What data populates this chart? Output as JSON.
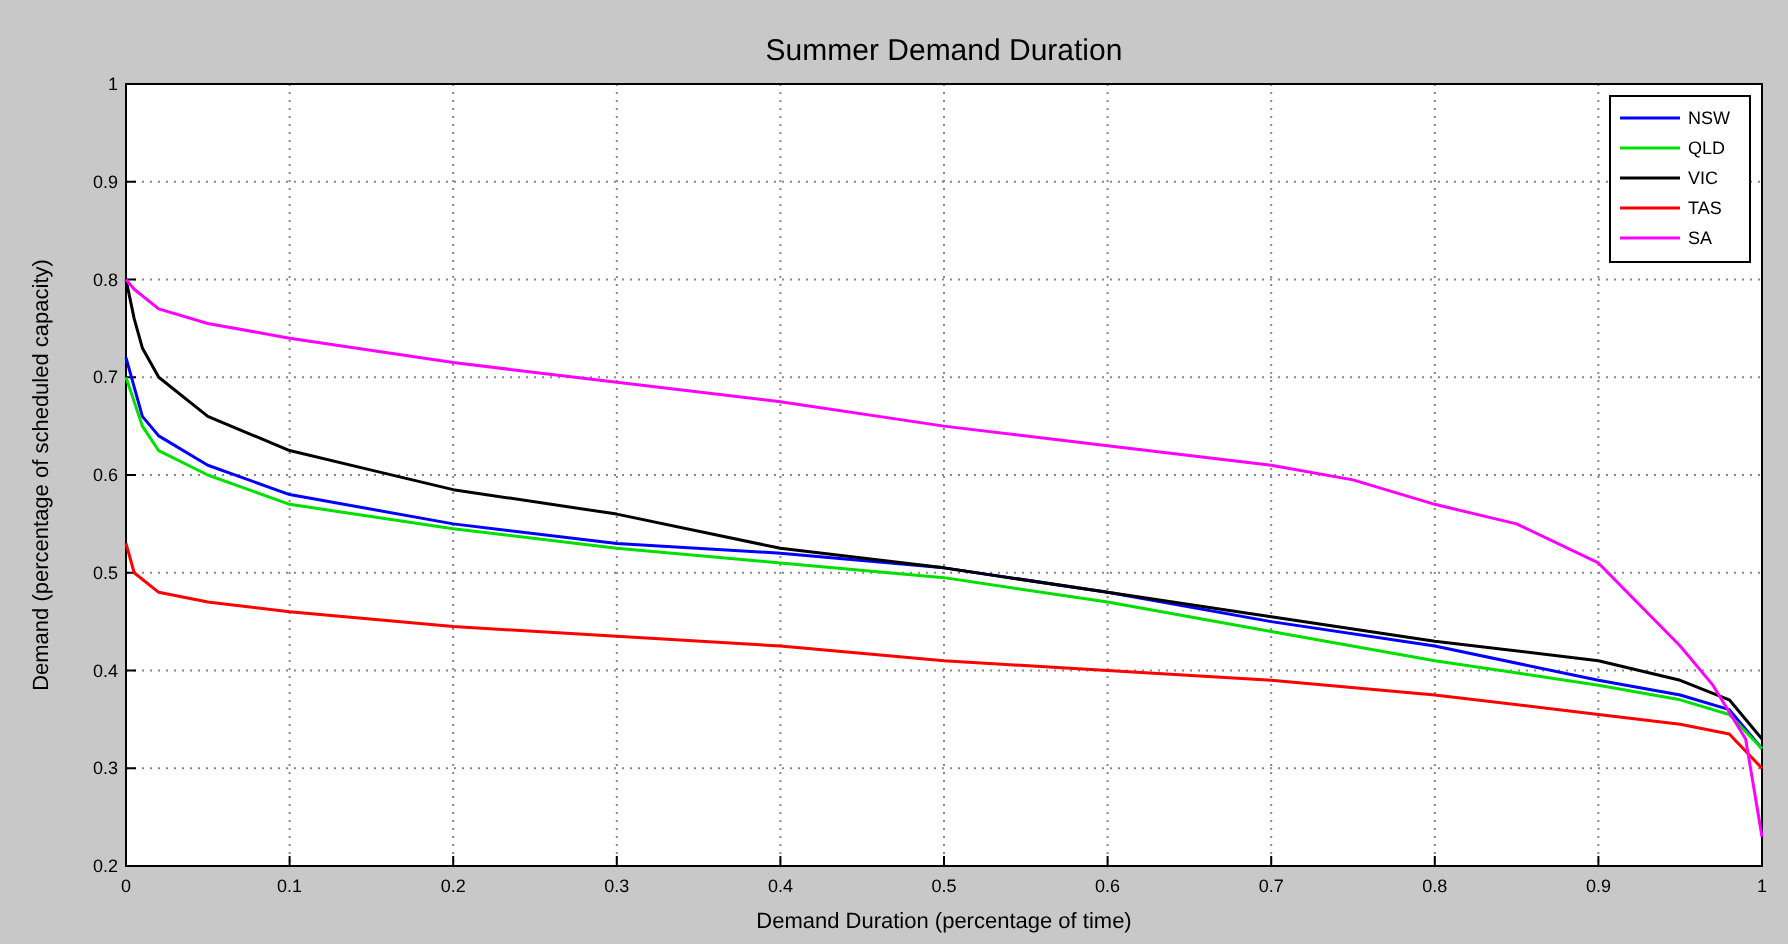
{
  "chart_data": {
    "type": "line",
    "title": "Summer Demand Duration",
    "xlabel": "Demand Duration (percentage of time)",
    "ylabel": "Demand (percentage of scheduled capacity)",
    "xlim": [
      0,
      1
    ],
    "ylim": [
      0.2,
      1
    ],
    "xticks": [
      0,
      0.1,
      0.2,
      0.3,
      0.4,
      0.5,
      0.6,
      0.7,
      0.8,
      0.9,
      1
    ],
    "yticks": [
      0.2,
      0.3,
      0.4,
      0.5,
      0.6,
      0.7,
      0.8,
      0.9,
      1
    ],
    "grid": true,
    "legend": "top right",
    "line_style": "solid",
    "marker": "none",
    "series": [
      {
        "name": "NSW",
        "color": "#0000ff",
        "x": [
          0,
          0.01,
          0.02,
          0.05,
          0.1,
          0.2,
          0.3,
          0.4,
          0.5,
          0.6,
          0.7,
          0.8,
          0.9,
          0.95,
          0.98,
          1
        ],
        "values": [
          0.72,
          0.66,
          0.64,
          0.61,
          0.58,
          0.55,
          0.53,
          0.52,
          0.505,
          0.48,
          0.45,
          0.425,
          0.39,
          0.375,
          0.36,
          0.32
        ]
      },
      {
        "name": "QLD",
        "color": "#00e000",
        "x": [
          0,
          0.01,
          0.02,
          0.05,
          0.1,
          0.2,
          0.3,
          0.4,
          0.5,
          0.6,
          0.7,
          0.8,
          0.9,
          0.95,
          0.98,
          1
        ],
        "values": [
          0.7,
          0.65,
          0.625,
          0.6,
          0.57,
          0.545,
          0.525,
          0.51,
          0.495,
          0.47,
          0.44,
          0.41,
          0.385,
          0.37,
          0.355,
          0.32
        ]
      },
      {
        "name": "VIC",
        "color": "#000000",
        "x": [
          0,
          0.005,
          0.01,
          0.02,
          0.05,
          0.1,
          0.15,
          0.2,
          0.3,
          0.4,
          0.5,
          0.6,
          0.7,
          0.8,
          0.9,
          0.95,
          0.98,
          1
        ],
        "values": [
          0.8,
          0.76,
          0.73,
          0.7,
          0.66,
          0.625,
          0.605,
          0.585,
          0.56,
          0.525,
          0.505,
          0.48,
          0.455,
          0.43,
          0.41,
          0.39,
          0.37,
          0.33
        ]
      },
      {
        "name": "TAS",
        "color": "#ff0000",
        "x": [
          0,
          0.005,
          0.02,
          0.05,
          0.1,
          0.2,
          0.3,
          0.4,
          0.5,
          0.6,
          0.7,
          0.8,
          0.9,
          0.95,
          0.98,
          1
        ],
        "values": [
          0.53,
          0.5,
          0.48,
          0.47,
          0.46,
          0.445,
          0.435,
          0.425,
          0.41,
          0.4,
          0.39,
          0.375,
          0.355,
          0.345,
          0.335,
          0.3
        ]
      },
      {
        "name": "SA",
        "color": "#ff00ff",
        "x": [
          0,
          0.005,
          0.02,
          0.05,
          0.1,
          0.2,
          0.3,
          0.4,
          0.5,
          0.6,
          0.7,
          0.75,
          0.8,
          0.85,
          0.9,
          0.95,
          0.97,
          0.99,
          1
        ],
        "values": [
          0.8,
          0.79,
          0.77,
          0.755,
          0.74,
          0.715,
          0.695,
          0.675,
          0.65,
          0.63,
          0.61,
          0.595,
          0.57,
          0.55,
          0.51,
          0.425,
          0.385,
          0.33,
          0.23
        ]
      }
    ]
  }
}
